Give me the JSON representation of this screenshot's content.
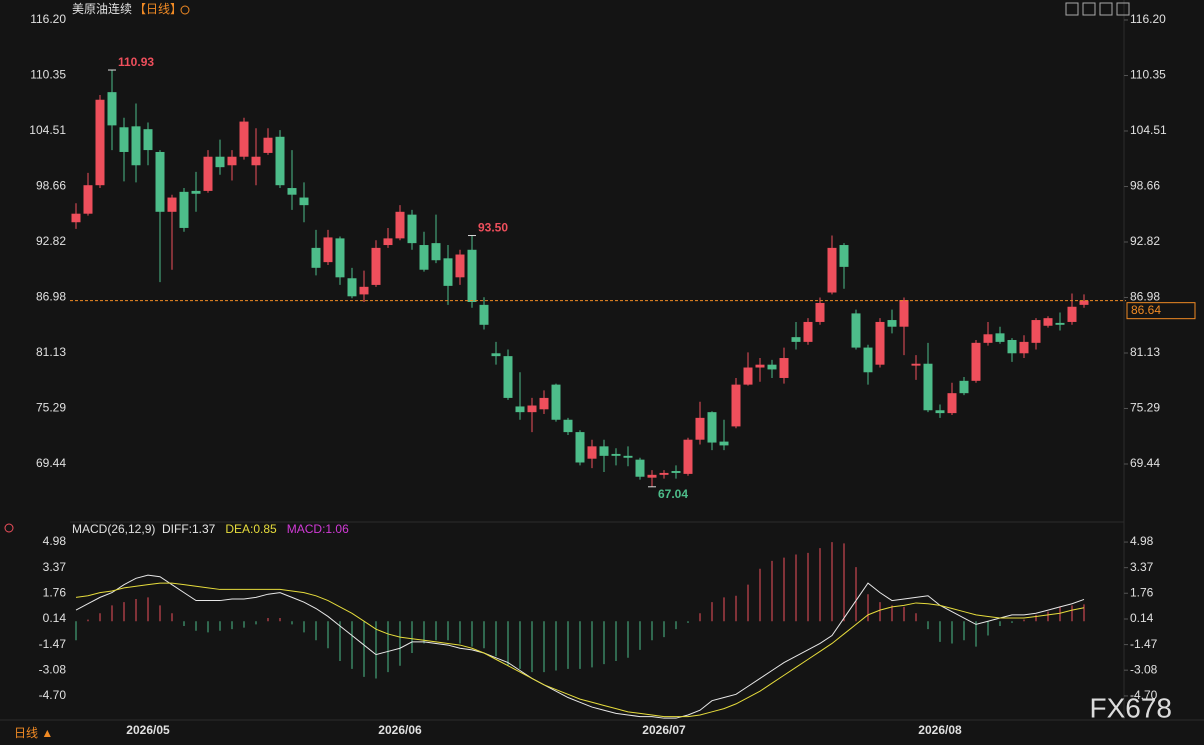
{
  "chart_data": [
    {
      "type": "candlestick",
      "title": "美原油连续",
      "subtitle": "【日线】",
      "period_tab": "日线 ▲",
      "watermark": "FX678",
      "up_color": "#ee4f5c",
      "down_color": "#4dbd8a",
      "categories": [
        null,
        null,
        null,
        null,
        null,
        null,
        "2026/05",
        null,
        null,
        null,
        null,
        null,
        null,
        null,
        null,
        null,
        null,
        null,
        null,
        null,
        null,
        null,
        null,
        null,
        null,
        null,
        null,
        "2026/06",
        null,
        null,
        null,
        null,
        null,
        null,
        null,
        null,
        null,
        null,
        null,
        null,
        null,
        null,
        null,
        null,
        null,
        null,
        null,
        null,
        null,
        "2026/07",
        null,
        null,
        null,
        null,
        null,
        null,
        null,
        null,
        null,
        null,
        null,
        null,
        null,
        null,
        null,
        null,
        null,
        null,
        null,
        null,
        null,
        null,
        "2026/08",
        null,
        null,
        null,
        null,
        null,
        null,
        null,
        null,
        null,
        null,
        null,
        null
      ],
      "open": [
        94.9,
        95.8,
        98.8,
        108.6,
        104.9,
        105.0,
        104.7,
        102.3,
        96.0,
        98.1,
        98.2,
        98.2,
        101.8,
        100.9,
        101.8,
        100.9,
        102.2,
        103.9,
        98.5,
        97.5,
        92.2,
        90.7,
        93.2,
        89.0,
        87.3,
        88.3,
        92.5,
        93.2,
        95.7,
        92.5,
        92.7,
        91.1,
        89.1,
        92.0,
        86.2,
        81.1,
        80.8,
        75.5,
        74.9,
        75.2,
        77.8,
        74.1,
        72.8,
        70.0,
        71.3,
        70.5,
        70.3,
        69.9,
        68.0,
        68.3,
        68.7,
        68.4,
        72.0,
        74.9,
        71.8,
        73.4,
        77.8,
        79.6,
        79.9,
        78.5,
        82.8,
        82.3,
        84.4,
        87.5,
        92.5,
        85.3,
        81.7,
        79.9,
        84.6,
        83.9,
        79.8,
        80.0,
        75.1,
        74.8,
        78.2,
        78.2,
        82.2,
        83.2,
        82.5,
        81.1,
        82.2,
        84.0,
        84.3,
        84.4,
        86.2
      ],
      "high": [
        96.9,
        100.1,
        108.3,
        110.93,
        105.9,
        107.4,
        105.4,
        102.5,
        97.8,
        98.5,
        100.2,
        102.5,
        103.6,
        102.5,
        105.9,
        104.8,
        104.8,
        104.6,
        102.5,
        99.1,
        94.1,
        94.1,
        93.4,
        90.1,
        89.8,
        93.0,
        94.3,
        96.7,
        96.2,
        93.9,
        95.7,
        92.5,
        92.0,
        93.5,
        87.0,
        82.3,
        81.5,
        79.1,
        76.4,
        77.2,
        77.9,
        74.3,
        73.0,
        72.0,
        72.0,
        71.1,
        71.3,
        70.1,
        68.8,
        68.8,
        69.3,
        72.2,
        76.0,
        75.0,
        74.1,
        78.5,
        81.2,
        80.6,
        80.4,
        81.7,
        84.4,
        84.8,
        86.98,
        93.5,
        92.7,
        85.7,
        82.0,
        84.8,
        85.7,
        86.98,
        80.9,
        82.2,
        75.7,
        78.0,
        78.6,
        82.5,
        84.4,
        83.9,
        82.7,
        83.0,
        84.8,
        85.0,
        85.4,
        87.4,
        87.3
      ],
      "low": [
        94.2,
        95.6,
        98.5,
        102.5,
        99.2,
        99.1,
        100.9,
        88.6,
        89.9,
        93.9,
        96.0,
        98.0,
        99.9,
        99.3,
        101.5,
        98.8,
        102.0,
        98.5,
        96.2,
        94.9,
        89.3,
        90.4,
        88.3,
        86.9,
        86.5,
        88.1,
        92.2,
        93.0,
        92.0,
        89.7,
        90.6,
        86.2,
        88.3,
        85.9,
        83.6,
        79.9,
        76.2,
        74.1,
        72.8,
        74.7,
        73.9,
        72.5,
        69.3,
        69.0,
        68.6,
        69.3,
        69.2,
        67.8,
        67.04,
        67.9,
        67.9,
        68.2,
        71.5,
        70.9,
        70.9,
        73.2,
        77.7,
        78.1,
        78.5,
        77.9,
        81.5,
        82.0,
        84.1,
        87.3,
        87.9,
        81.5,
        77.8,
        79.6,
        83.2,
        80.9,
        78.3,
        74.9,
        74.3,
        74.6,
        76.7,
        78.0,
        81.9,
        82.1,
        80.2,
        80.6,
        81.5,
        83.8,
        83.5,
        84.1,
        85.9
      ],
      "close": [
        95.8,
        98.8,
        107.8,
        105.1,
        102.3,
        100.9,
        102.5,
        96.0,
        97.5,
        94.3,
        97.9,
        101.8,
        100.7,
        101.8,
        105.5,
        101.8,
        103.8,
        98.8,
        97.8,
        96.7,
        90.1,
        93.3,
        89.1,
        87.1,
        88.1,
        92.2,
        93.2,
        96.0,
        92.7,
        89.9,
        90.9,
        88.2,
        91.5,
        86.5,
        84.1,
        80.8,
        76.4,
        74.9,
        75.6,
        76.4,
        74.1,
        72.8,
        69.6,
        71.3,
        70.3,
        70.3,
        70.1,
        68.1,
        68.3,
        68.5,
        68.5,
        72.0,
        74.3,
        71.7,
        71.4,
        77.8,
        79.6,
        79.9,
        79.4,
        80.6,
        82.3,
        84.4,
        86.4,
        92.2,
        90.2,
        81.7,
        79.1,
        84.4,
        83.9,
        86.7,
        80.0,
        75.1,
        74.8,
        76.9,
        76.9,
        82.2,
        83.1,
        82.3,
        81.1,
        82.3,
        84.6,
        84.8,
        84.1,
        86.0,
        86.64
      ],
      "ylim": [
        64.07,
        117.04
      ],
      "yticks": [
        {
          "value": 116.2,
          "label": "116.20"
        },
        110.35,
        104.51,
        98.66,
        92.82,
        86.98,
        81.13,
        75.29,
        69.44
      ],
      "annotations": [
        {
          "value": 110.93,
          "color": "#ee4f5c"
        },
        {
          "value": 93.5,
          "label": "93.50",
          "color": "#ee4f5c"
        },
        {
          "value": 67.04,
          "color": "#4dbd8a"
        }
      ],
      "last_price": 86.64,
      "last_price_color": "#f08a24"
    },
    {
      "type": "macd",
      "title": "MACD(26,12,9)",
      "series": [
        {
          "name": "DIFF:1.37",
          "color": "#e8e8e8",
          "values": [
            0.7,
            1.1,
            1.5,
            1.8,
            2.3,
            2.7,
            2.9,
            2.8,
            2.3,
            1.8,
            1.3,
            1.3,
            1.3,
            1.4,
            1.4,
            1.5,
            1.7,
            1.8,
            1.5,
            1.2,
            0.8,
            0.3,
            -0.3,
            -0.9,
            -1.5,
            -2.1,
            -1.9,
            -1.7,
            -1.3,
            -1.3,
            -1.4,
            -1.5,
            -1.7,
            -1.8,
            -2.0,
            -2.3,
            -2.6,
            -3.1,
            -3.6,
            -4.0,
            -4.4,
            -4.8,
            -5.1,
            -5.4,
            -5.6,
            -5.8,
            -5.9,
            -6.0,
            -6.0,
            -6.1,
            -6.1,
            -5.9,
            -5.6,
            -5.0,
            -4.8,
            -4.6,
            -4.1,
            -3.6,
            -3.1,
            -2.6,
            -2.2,
            -1.8,
            -1.4,
            -0.9,
            0.2,
            1.3,
            2.4,
            1.8,
            1.3,
            1.4,
            1.5,
            1.6,
            1.0,
            0.6,
            0.2,
            -0.2,
            0.0,
            0.2,
            0.4,
            0.4,
            0.5,
            0.7,
            0.9,
            1.1,
            1.37
          ]
        },
        {
          "name": "DEA:0.85",
          "color": "#e6dc3c",
          "values": [
            1.5,
            1.6,
            1.8,
            1.9,
            2.1,
            2.2,
            2.3,
            2.4,
            2.4,
            2.3,
            2.2,
            2.1,
            2.0,
            2.0,
            2.0,
            2.0,
            2.0,
            2.0,
            1.9,
            1.8,
            1.6,
            1.3,
            0.9,
            0.5,
            0.0,
            -0.5,
            -0.8,
            -1.0,
            -1.1,
            -1.2,
            -1.3,
            -1.4,
            -1.5,
            -1.7,
            -2.0,
            -2.4,
            -2.8,
            -3.2,
            -3.6,
            -4.0,
            -4.3,
            -4.6,
            -4.9,
            -5.1,
            -5.3,
            -5.5,
            -5.7,
            -5.8,
            -5.9,
            -6.0,
            -6.0,
            -6.0,
            -5.9,
            -5.7,
            -5.5,
            -5.2,
            -4.8,
            -4.4,
            -3.9,
            -3.4,
            -2.9,
            -2.4,
            -1.9,
            -1.4,
            -0.8,
            -0.2,
            0.4,
            0.7,
            0.9,
            1.0,
            1.15,
            1.1,
            1.0,
            0.8,
            0.6,
            0.4,
            0.3,
            0.2,
            0.2,
            0.2,
            0.3,
            0.4,
            0.5,
            0.7,
            0.85
          ]
        },
        {
          "name": "MACD:1.06",
          "color": "#d13ad6",
          "up_color": "#ee4f5c",
          "down_color": "#4dbd8a",
          "values": [
            -1.2,
            0.1,
            0.5,
            1.0,
            1.2,
            1.4,
            1.5,
            1.0,
            0.5,
            -0.3,
            -0.6,
            -0.7,
            -0.6,
            -0.5,
            -0.4,
            -0.2,
            0.2,
            0.2,
            -0.2,
            -0.7,
            -1.2,
            -1.7,
            -2.5,
            -3.0,
            -3.5,
            -3.6,
            -3.2,
            -2.8,
            -2.0,
            -1.4,
            -1.2,
            -1.2,
            -1.4,
            -1.6,
            -1.7,
            -2.2,
            -2.8,
            -3.0,
            -3.2,
            -3.2,
            -3.1,
            -3.0,
            -3.0,
            -2.9,
            -2.7,
            -2.5,
            -2.3,
            -1.8,
            -1.2,
            -1.0,
            -0.5,
            -0.1,
            0.5,
            1.2,
            1.5,
            1.6,
            2.3,
            3.3,
            3.8,
            4.0,
            4.2,
            4.3,
            4.6,
            4.98,
            4.9,
            3.4,
            1.7,
            1.2,
            1.0,
            0.9,
            0.5,
            -0.5,
            -1.3,
            -1.4,
            -1.2,
            -1.6,
            -0.9,
            -0.3,
            -0.1,
            0.1,
            0.4,
            0.6,
            0.9,
            1.0,
            1.06
          ]
        }
      ],
      "ylim": [
        -6.34,
        5.11
      ],
      "yticks": [
        4.98,
        3.37,
        1.76,
        0.14,
        -1.47,
        -3.08,
        {
          "value": -4.7,
          "label": "-4.70"
        }
      ]
    }
  ]
}
